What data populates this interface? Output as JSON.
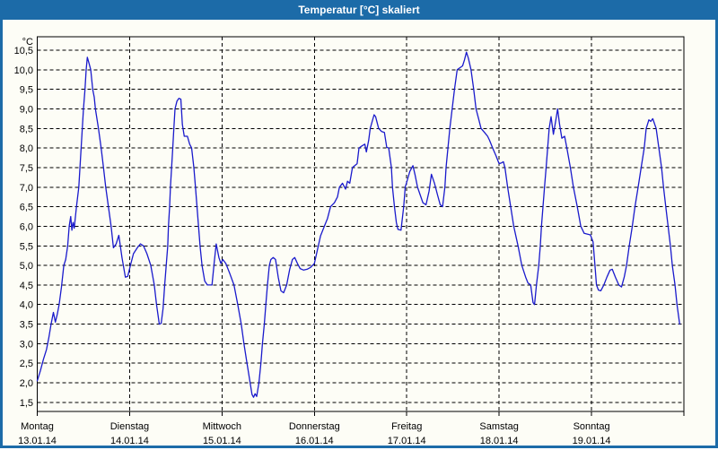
{
  "window": {
    "title": "Temperatur [°C] skaliert"
  },
  "colors": {
    "titlebar_bg": "#1c6ba8",
    "window_border": "#1c6ba8",
    "canvas_bg": "#fdfdf6",
    "line": "#1a1acc",
    "grid": "#000000",
    "frame": "#000000",
    "text": "#000000",
    "title_text": "#ffffff"
  },
  "chart_data": {
    "type": "line",
    "title": "Temperatur [°C] skaliert",
    "ylabel": "°C",
    "ylim": [
      1.27,
      10.85
    ],
    "y_tick_step": 0.5,
    "y_tick_labels": [
      "10,5",
      "10,0",
      "9,5",
      "9,0",
      "8,5",
      "8,0",
      "7,5",
      "7,0",
      "6,5",
      "6,0",
      "5,5",
      "5,0",
      "4,5",
      "4,0",
      "3,5",
      "3,0",
      "2,5",
      "2,0",
      "1,5"
    ],
    "x_unit": "hours_from_monday_00",
    "xlim": [
      0,
      168
    ],
    "x_day_ticks": [
      0,
      24,
      48,
      72,
      96,
      120,
      144,
      168
    ],
    "days": [
      {
        "name": "Montag",
        "date": "13.01.14"
      },
      {
        "name": "Dienstag",
        "date": "14.01.14"
      },
      {
        "name": "Mittwoch",
        "date": "15.01.14"
      },
      {
        "name": "Donnerstag",
        "date": "16.01.14"
      },
      {
        "name": "Freitag",
        "date": "17.01.14"
      },
      {
        "name": "Samstag",
        "date": "18.01.14"
      },
      {
        "name": "Sonntag",
        "date": "19.01.14"
      }
    ],
    "grid": "dashed-black-both-axes",
    "legend": null,
    "series": [
      {
        "name": "Temperatur [°C]",
        "color": "#1a1acc",
        "points": [
          [
            0,
            2.05
          ],
          [
            0.8,
            2.3
          ],
          [
            1.6,
            2.6
          ],
          [
            2.4,
            2.85
          ],
          [
            3.0,
            3.15
          ],
          [
            3.6,
            3.5
          ],
          [
            4.2,
            3.8
          ],
          [
            4.7,
            3.55
          ],
          [
            5.2,
            3.75
          ],
          [
            5.7,
            4.0
          ],
          [
            6.3,
            4.45
          ],
          [
            6.9,
            5.0
          ],
          [
            7.4,
            5.15
          ],
          [
            7.9,
            5.5
          ],
          [
            8.3,
            6.0
          ],
          [
            8.7,
            6.25
          ],
          [
            9.0,
            5.9
          ],
          [
            9.3,
            6.1
          ],
          [
            9.6,
            5.95
          ],
          [
            10.2,
            6.5
          ],
          [
            10.8,
            7.0
          ],
          [
            11.1,
            7.5
          ],
          [
            11.4,
            8.0
          ],
          [
            11.7,
            8.5
          ],
          [
            12.0,
            9.0
          ],
          [
            12.4,
            9.5
          ],
          [
            12.7,
            10.0
          ],
          [
            13.0,
            10.32
          ],
          [
            13.5,
            10.15
          ],
          [
            13.9,
            10.0
          ],
          [
            14.4,
            9.5
          ],
          [
            14.8,
            9.3
          ],
          [
            15.1,
            9.0
          ],
          [
            15.9,
            8.5
          ],
          [
            16.6,
            8.0
          ],
          [
            17.2,
            7.5
          ],
          [
            17.8,
            7.0
          ],
          [
            18.5,
            6.5
          ],
          [
            19.2,
            6.0
          ],
          [
            19.8,
            5.45
          ],
          [
            20.5,
            5.55
          ],
          [
            21.2,
            5.77
          ],
          [
            22.0,
            5.2
          ],
          [
            22.9,
            4.7
          ],
          [
            23.5,
            4.72
          ],
          [
            24.2,
            5.0
          ],
          [
            25.0,
            5.3
          ],
          [
            26.0,
            5.45
          ],
          [
            26.8,
            5.55
          ],
          [
            27.6,
            5.5
          ],
          [
            28.5,
            5.3
          ],
          [
            29.5,
            5.0
          ],
          [
            30.4,
            4.5
          ],
          [
            31.0,
            4.0
          ],
          [
            31.7,
            3.5
          ],
          [
            32.2,
            3.52
          ],
          [
            32.7,
            3.9
          ],
          [
            33.1,
            4.5
          ],
          [
            33.5,
            5.0
          ],
          [
            33.9,
            5.5
          ],
          [
            34.1,
            6.0
          ],
          [
            34.4,
            6.5
          ],
          [
            34.6,
            7.0
          ],
          [
            34.9,
            7.5
          ],
          [
            35.2,
            8.0
          ],
          [
            35.5,
            8.5
          ],
          [
            35.8,
            9.0
          ],
          [
            36.3,
            9.2
          ],
          [
            36.8,
            9.27
          ],
          [
            37.3,
            9.25
          ],
          [
            37.7,
            8.6
          ],
          [
            38.2,
            8.3
          ],
          [
            39.0,
            8.3
          ],
          [
            39.6,
            8.1
          ],
          [
            40.1,
            8.0
          ],
          [
            40.7,
            7.5
          ],
          [
            41.1,
            7.0
          ],
          [
            41.5,
            6.5
          ],
          [
            41.9,
            6.0
          ],
          [
            42.3,
            5.5
          ],
          [
            42.8,
            5.0
          ],
          [
            43.5,
            4.6
          ],
          [
            44.2,
            4.5
          ],
          [
            45.4,
            4.5
          ],
          [
            46.0,
            5.1
          ],
          [
            46.5,
            5.55
          ],
          [
            47.2,
            5.2
          ],
          [
            47.7,
            5.05
          ],
          [
            48.2,
            5.15
          ],
          [
            49.0,
            5.05
          ],
          [
            50.0,
            4.8
          ],
          [
            51.1,
            4.5
          ],
          [
            52.1,
            4.0
          ],
          [
            53.0,
            3.5
          ],
          [
            53.7,
            3.0
          ],
          [
            54.5,
            2.5
          ],
          [
            55.3,
            2.0
          ],
          [
            55.8,
            1.7
          ],
          [
            56.2,
            1.63
          ],
          [
            56.6,
            1.72
          ],
          [
            57.0,
            1.65
          ],
          [
            57.6,
            2.0
          ],
          [
            58.1,
            2.5
          ],
          [
            58.5,
            3.0
          ],
          [
            59.0,
            3.5
          ],
          [
            59.4,
            4.0
          ],
          [
            59.8,
            4.5
          ],
          [
            60.3,
            5.0
          ],
          [
            60.7,
            5.15
          ],
          [
            61.3,
            5.2
          ],
          [
            61.9,
            5.15
          ],
          [
            62.6,
            4.7
          ],
          [
            63.3,
            4.35
          ],
          [
            64.0,
            4.3
          ],
          [
            64.8,
            4.5
          ],
          [
            65.6,
            4.9
          ],
          [
            66.3,
            5.15
          ],
          [
            66.9,
            5.2
          ],
          [
            67.6,
            5.05
          ],
          [
            68.3,
            4.92
          ],
          [
            69.2,
            4.88
          ],
          [
            70.1,
            4.9
          ],
          [
            71.0,
            4.95
          ],
          [
            72.0,
            5.05
          ],
          [
            72.8,
            5.4
          ],
          [
            73.6,
            5.75
          ],
          [
            74.6,
            6.0
          ],
          [
            75.4,
            6.2
          ],
          [
            76.2,
            6.5
          ],
          [
            77.2,
            6.6
          ],
          [
            78.0,
            6.75
          ],
          [
            78.5,
            7.0
          ],
          [
            79.3,
            7.1
          ],
          [
            80.1,
            6.95
          ],
          [
            80.6,
            7.15
          ],
          [
            81.2,
            7.1
          ],
          [
            81.9,
            7.5
          ],
          [
            82.5,
            7.55
          ],
          [
            83.1,
            7.6
          ],
          [
            83.6,
            8.0
          ],
          [
            84.3,
            8.05
          ],
          [
            85.1,
            8.1
          ],
          [
            85.5,
            7.9
          ],
          [
            86.1,
            8.2
          ],
          [
            86.5,
            8.5
          ],
          [
            87.5,
            8.85
          ],
          [
            87.9,
            8.8
          ],
          [
            88.7,
            8.5
          ],
          [
            89.5,
            8.42
          ],
          [
            90.2,
            8.4
          ],
          [
            90.8,
            8.02
          ],
          [
            91.3,
            8.0
          ],
          [
            92.0,
            7.5
          ],
          [
            92.3,
            7.0
          ],
          [
            92.8,
            6.5
          ],
          [
            93.3,
            6.1
          ],
          [
            93.7,
            5.92
          ],
          [
            94.5,
            5.9
          ],
          [
            95.2,
            6.5
          ],
          [
            95.6,
            7.0
          ],
          [
            96.2,
            7.2
          ],
          [
            96.8,
            7.4
          ],
          [
            97.6,
            7.55
          ],
          [
            98.2,
            7.3
          ],
          [
            98.8,
            7.0
          ],
          [
            99.5,
            6.8
          ],
          [
            100.2,
            6.6
          ],
          [
            101.0,
            6.55
          ],
          [
            101.8,
            6.9
          ],
          [
            102.4,
            7.33
          ],
          [
            103.2,
            7.1
          ],
          [
            104.0,
            6.8
          ],
          [
            104.7,
            6.55
          ],
          [
            105.3,
            6.5
          ],
          [
            105.9,
            7.0
          ],
          [
            106.2,
            7.5
          ],
          [
            106.7,
            8.0
          ],
          [
            107.2,
            8.5
          ],
          [
            107.8,
            9.0
          ],
          [
            108.4,
            9.5
          ],
          [
            109.1,
            10.0
          ],
          [
            109.8,
            10.05
          ],
          [
            110.5,
            10.1
          ],
          [
            111.0,
            10.25
          ],
          [
            111.5,
            10.45
          ],
          [
            112.0,
            10.3
          ],
          [
            112.7,
            10.0
          ],
          [
            113.4,
            9.5
          ],
          [
            114.0,
            9.0
          ],
          [
            114.8,
            8.7
          ],
          [
            115.3,
            8.5
          ],
          [
            116.2,
            8.4
          ],
          [
            117.0,
            8.3
          ],
          [
            117.5,
            8.2
          ],
          [
            118.3,
            8.0
          ],
          [
            119.2,
            7.8
          ],
          [
            120.0,
            7.6
          ],
          [
            120.6,
            7.62
          ],
          [
            121.1,
            7.65
          ],
          [
            121.5,
            7.5
          ],
          [
            122.2,
            7.0
          ],
          [
            123.0,
            6.5
          ],
          [
            123.8,
            6.0
          ],
          [
            124.9,
            5.5
          ],
          [
            125.9,
            5.0
          ],
          [
            126.9,
            4.7
          ],
          [
            127.5,
            4.55
          ],
          [
            128.2,
            4.5
          ],
          [
            128.8,
            4.05
          ],
          [
            129.2,
            4.0
          ],
          [
            129.7,
            4.5
          ],
          [
            130.3,
            5.0
          ],
          [
            130.7,
            5.5
          ],
          [
            131.0,
            6.0
          ],
          [
            131.4,
            6.5
          ],
          [
            131.8,
            7.0
          ],
          [
            132.2,
            7.5
          ],
          [
            132.6,
            8.0
          ],
          [
            133.0,
            8.5
          ],
          [
            133.5,
            8.8
          ],
          [
            134.1,
            8.35
          ],
          [
            134.7,
            8.7
          ],
          [
            135.2,
            9.0
          ],
          [
            135.7,
            8.6
          ],
          [
            136.3,
            8.25
          ],
          [
            137.0,
            8.3
          ],
          [
            137.6,
            8.0
          ],
          [
            138.5,
            7.5
          ],
          [
            139.3,
            7.0
          ],
          [
            140.3,
            6.5
          ],
          [
            141.2,
            6.0
          ],
          [
            142.1,
            5.82
          ],
          [
            143.0,
            5.8
          ],
          [
            143.7,
            5.78
          ],
          [
            144.4,
            5.6
          ],
          [
            144.9,
            5.0
          ],
          [
            145.3,
            4.5
          ],
          [
            145.8,
            4.37
          ],
          [
            146.4,
            4.35
          ],
          [
            147.2,
            4.5
          ],
          [
            148.0,
            4.7
          ],
          [
            148.8,
            4.88
          ],
          [
            149.4,
            4.9
          ],
          [
            150.2,
            4.7
          ],
          [
            151.1,
            4.5
          ],
          [
            151.8,
            4.45
          ],
          [
            152.5,
            4.7
          ],
          [
            153.1,
            5.0
          ],
          [
            153.8,
            5.5
          ],
          [
            154.6,
            6.0
          ],
          [
            155.3,
            6.5
          ],
          [
            156.1,
            7.0
          ],
          [
            156.9,
            7.5
          ],
          [
            157.7,
            8.0
          ],
          [
            158.2,
            8.5
          ],
          [
            158.9,
            8.72
          ],
          [
            159.4,
            8.68
          ],
          [
            159.9,
            8.75
          ],
          [
            160.8,
            8.5
          ],
          [
            161.5,
            8.0
          ],
          [
            162.2,
            7.5
          ],
          [
            162.7,
            7.0
          ],
          [
            163.3,
            6.5
          ],
          [
            163.9,
            6.0
          ],
          [
            164.5,
            5.5
          ],
          [
            165.0,
            5.0
          ],
          [
            165.7,
            4.5
          ],
          [
            166.2,
            4.0
          ],
          [
            166.9,
            3.5
          ]
        ]
      }
    ]
  }
}
